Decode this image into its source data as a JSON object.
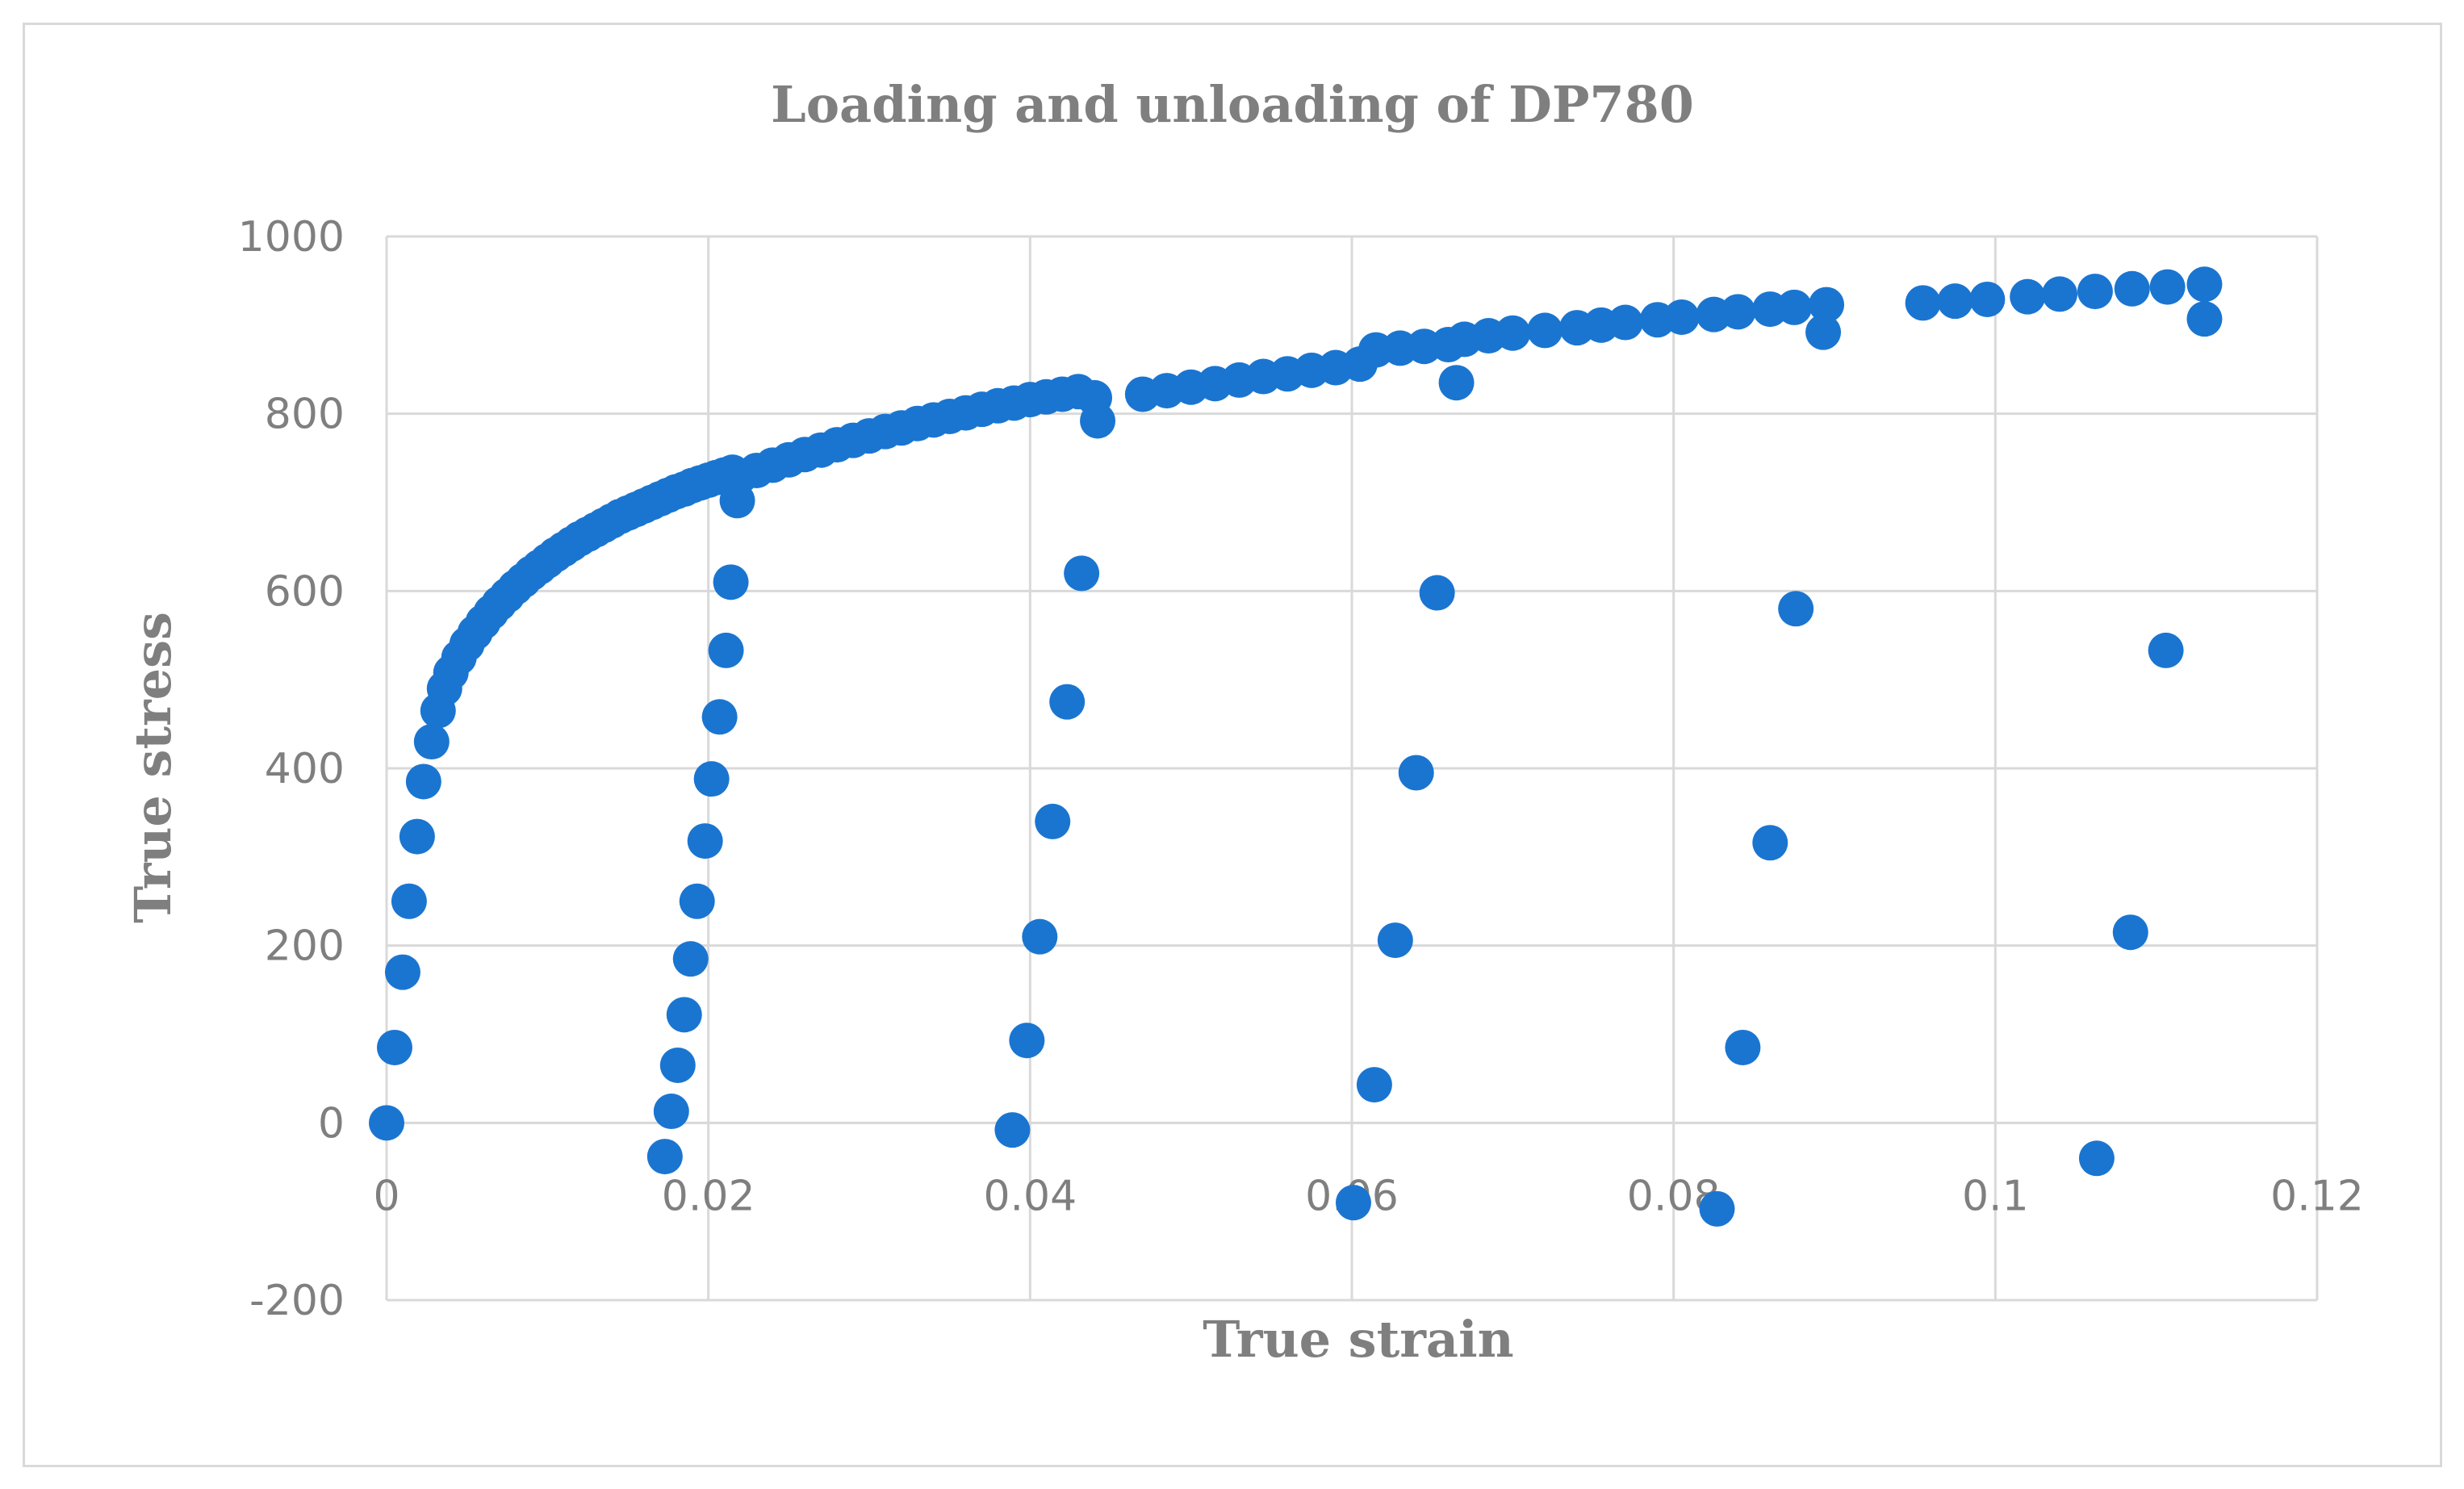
{
  "chart_data": {
    "type": "scatter",
    "title": "Loading and unloading of DP780",
    "xlabel": "True strain",
    "ylabel": "True stress",
    "xlim": [
      0,
      0.12
    ],
    "ylim": [
      -200,
      1000
    ],
    "x_ticks": [
      "0",
      "0.02",
      "0.04",
      "0.06",
      "0.08",
      "0.1",
      "0.12"
    ],
    "y_ticks": [
      "-200",
      "0",
      "200",
      "400",
      "600",
      "800",
      "1000"
    ],
    "grid": true,
    "legend": "none",
    "marker_color": "#1a75d1",
    "series": [
      {
        "points": [
          [
            0.0,
            0
          ],
          [
            0.0005,
            85
          ],
          [
            0.001,
            170
          ],
          [
            0.0014,
            250
          ],
          [
            0.0019,
            323
          ],
          [
            0.0023,
            385
          ],
          [
            0.0028,
            430
          ],
          [
            0.0032,
            465
          ],
          [
            0.0036,
            490
          ],
          [
            0.004,
            508
          ],
          [
            0.0045,
            525
          ],
          [
            0.005,
            540
          ],
          [
            0.0055,
            553
          ],
          [
            0.006,
            565
          ],
          [
            0.0065,
            576
          ],
          [
            0.007,
            586
          ],
          [
            0.0075,
            595
          ],
          [
            0.008,
            604
          ],
          [
            0.0085,
            612
          ],
          [
            0.009,
            620
          ],
          [
            0.0095,
            627
          ],
          [
            0.01,
            634
          ],
          [
            0.0105,
            641
          ],
          [
            0.011,
            647
          ],
          [
            0.0115,
            653
          ],
          [
            0.012,
            659
          ],
          [
            0.0125,
            664
          ],
          [
            0.013,
            669
          ],
          [
            0.0135,
            674
          ],
          [
            0.014,
            679
          ],
          [
            0.0145,
            684
          ],
          [
            0.015,
            688
          ],
          [
            0.0155,
            692
          ],
          [
            0.016,
            696
          ],
          [
            0.0165,
            700
          ],
          [
            0.017,
            704
          ],
          [
            0.0175,
            708
          ],
          [
            0.018,
            712
          ],
          [
            0.0185,
            715
          ],
          [
            0.019,
            719
          ],
          [
            0.0195,
            722
          ],
          [
            0.02,
            725
          ],
          [
            0.0205,
            728
          ],
          [
            0.021,
            731
          ],
          [
            0.0215,
            734
          ],
          [
            0.0218,
            702
          ],
          [
            0.0214,
            610
          ],
          [
            0.0211,
            533
          ],
          [
            0.0207,
            458
          ],
          [
            0.0202,
            388
          ],
          [
            0.0198,
            318
          ],
          [
            0.0193,
            250
          ],
          [
            0.0189,
            185
          ],
          [
            0.0185,
            122
          ],
          [
            0.0181,
            65
          ],
          [
            0.0177,
            13
          ],
          [
            0.0173,
            -38
          ],
          [
            0.022,
            730
          ],
          [
            0.023,
            736
          ],
          [
            0.024,
            742
          ],
          [
            0.025,
            748
          ],
          [
            0.026,
            754
          ],
          [
            0.027,
            759
          ],
          [
            0.028,
            765
          ],
          [
            0.029,
            770
          ],
          [
            0.03,
            775
          ],
          [
            0.031,
            780
          ],
          [
            0.032,
            784
          ],
          [
            0.033,
            789
          ],
          [
            0.034,
            793
          ],
          [
            0.035,
            797
          ],
          [
            0.036,
            801
          ],
          [
            0.037,
            805
          ],
          [
            0.038,
            809
          ],
          [
            0.039,
            812
          ],
          [
            0.04,
            816
          ],
          [
            0.041,
            819
          ],
          [
            0.042,
            822
          ],
          [
            0.043,
            825
          ],
          [
            0.044,
            818
          ],
          [
            0.0442,
            792
          ],
          [
            0.0432,
            620
          ],
          [
            0.0423,
            475
          ],
          [
            0.0414,
            340
          ],
          [
            0.0406,
            210
          ],
          [
            0.0398,
            93
          ],
          [
            0.0389,
            -8
          ],
          [
            0.047,
            822
          ],
          [
            0.0485,
            826
          ],
          [
            0.05,
            830
          ],
          [
            0.0515,
            834
          ],
          [
            0.053,
            838
          ],
          [
            0.0545,
            842
          ],
          [
            0.056,
            845
          ],
          [
            0.0575,
            849
          ],
          [
            0.059,
            852
          ],
          [
            0.0605,
            856
          ],
          [
            0.0615,
            872
          ],
          [
            0.063,
            874
          ],
          [
            0.0645,
            876
          ],
          [
            0.066,
            878
          ],
          [
            0.067,
            884
          ],
          [
            0.0665,
            835
          ],
          [
            0.0653,
            598
          ],
          [
            0.064,
            395
          ],
          [
            0.0627,
            206
          ],
          [
            0.0614,
            43
          ],
          [
            0.0601,
            -90
          ],
          [
            0.0685,
            888
          ],
          [
            0.07,
            891
          ],
          [
            0.072,
            894
          ],
          [
            0.074,
            897
          ],
          [
            0.0755,
            900
          ],
          [
            0.077,
            903
          ],
          [
            0.079,
            906
          ],
          [
            0.0805,
            909
          ],
          [
            0.0825,
            912
          ],
          [
            0.084,
            915
          ],
          [
            0.086,
            918
          ],
          [
            0.0875,
            920
          ],
          [
            0.0895,
            923
          ],
          [
            0.0893,
            892
          ],
          [
            0.0876,
            580
          ],
          [
            0.086,
            316
          ],
          [
            0.0843,
            85
          ],
          [
            0.0827,
            -97
          ],
          [
            0.0955,
            925
          ],
          [
            0.0975,
            927
          ],
          [
            0.0995,
            929
          ],
          [
            0.102,
            932
          ],
          [
            0.104,
            935
          ],
          [
            0.1062,
            938
          ],
          [
            0.1085,
            941
          ],
          [
            0.1107,
            943
          ],
          [
            0.113,
            946
          ],
          [
            0.113,
            907
          ],
          [
            0.1106,
            533
          ],
          [
            0.1084,
            215
          ],
          [
            0.1063,
            -40
          ]
        ]
      }
    ]
  }
}
